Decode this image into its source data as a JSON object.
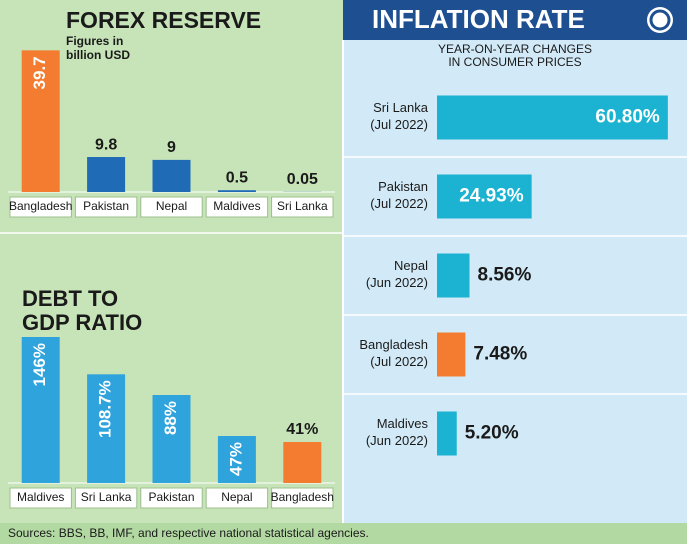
{
  "chart_data": [
    {
      "type": "bar",
      "orientation": "vertical",
      "title": "FOREX RESERVE",
      "subtitle": "Figures in\nbillion USD",
      "categories": [
        "Bangladesh",
        "Pakistan",
        "Nepal",
        "Maldives",
        "Sri Lanka"
      ],
      "values": [
        39.7,
        9.8,
        9,
        0.5,
        0.05
      ],
      "colors": [
        "#f47c30",
        "#1f6bb5",
        "#1f6bb5",
        "#1f6bb5",
        "#1f6bb5"
      ],
      "ylim": [
        0,
        44
      ]
    },
    {
      "type": "bar",
      "orientation": "vertical",
      "title": "DEBT TO\nGDP RATIO",
      "categories": [
        "Maldives",
        "Sri Lanka",
        "Pakistan",
        "Nepal",
        "Bangladesh"
      ],
      "values": [
        146,
        108.7,
        88,
        47,
        41
      ],
      "value_labels": [
        "146%",
        "108.7%",
        "88%",
        "47%",
        "41%"
      ],
      "colors": [
        "#2ea3dc",
        "#2ea3dc",
        "#2ea3dc",
        "#2ea3dc",
        "#f47c30"
      ],
      "ylim": [
        0,
        155
      ]
    },
    {
      "type": "bar",
      "orientation": "horizontal",
      "title": "INFLATION RATE",
      "subtitle": "YEAR-ON-YEAR CHANGES\nIN CONSUMER PRICES",
      "categories": [
        "Sri Lanka\n(Jul 2022)",
        "Pakistan\n(Jul 2022)",
        "Nepal\n(Jun 2022)",
        "Bangladesh\n(Jul 2022)",
        "Maldives\n(Jun 2022)"
      ],
      "values": [
        60.8,
        24.93,
        8.56,
        7.48,
        5.2
      ],
      "value_labels": [
        "60.80%",
        "24.93%",
        "8.56%",
        "7.48%",
        "5.20%"
      ],
      "colors": [
        "#1bb3d1",
        "#1bb3d1",
        "#1bb3d1",
        "#f47c30",
        "#1bb3d1"
      ],
      "xlim": [
        0,
        64
      ]
    }
  ],
  "sources": "Sources: BBS, BB, IMF, and respective national statistical agencies."
}
